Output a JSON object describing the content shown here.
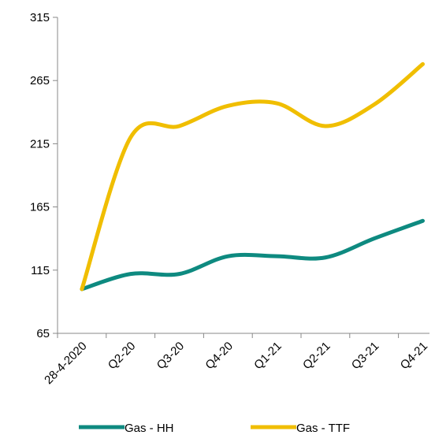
{
  "chart_data": {
    "type": "line",
    "categories": [
      "28-4-2020",
      "Q2-20",
      "Q3-20",
      "Q4-20",
      "Q1-21",
      "Q2-21",
      "Q3-21",
      "Q4-21"
    ],
    "series": [
      {
        "name": "Gas - HH",
        "color": "#0e8a80",
        "values": [
          100,
          112,
          112,
          126,
          126,
          125,
          140,
          154
        ]
      },
      {
        "name": "Gas - TTF",
        "color": "#f0be00",
        "values": [
          100,
          220,
          229,
          245,
          247,
          229,
          246,
          278
        ]
      }
    ],
    "ylim": [
      65,
      315
    ],
    "yticks": [
      65,
      115,
      165,
      215,
      265,
      315
    ]
  }
}
